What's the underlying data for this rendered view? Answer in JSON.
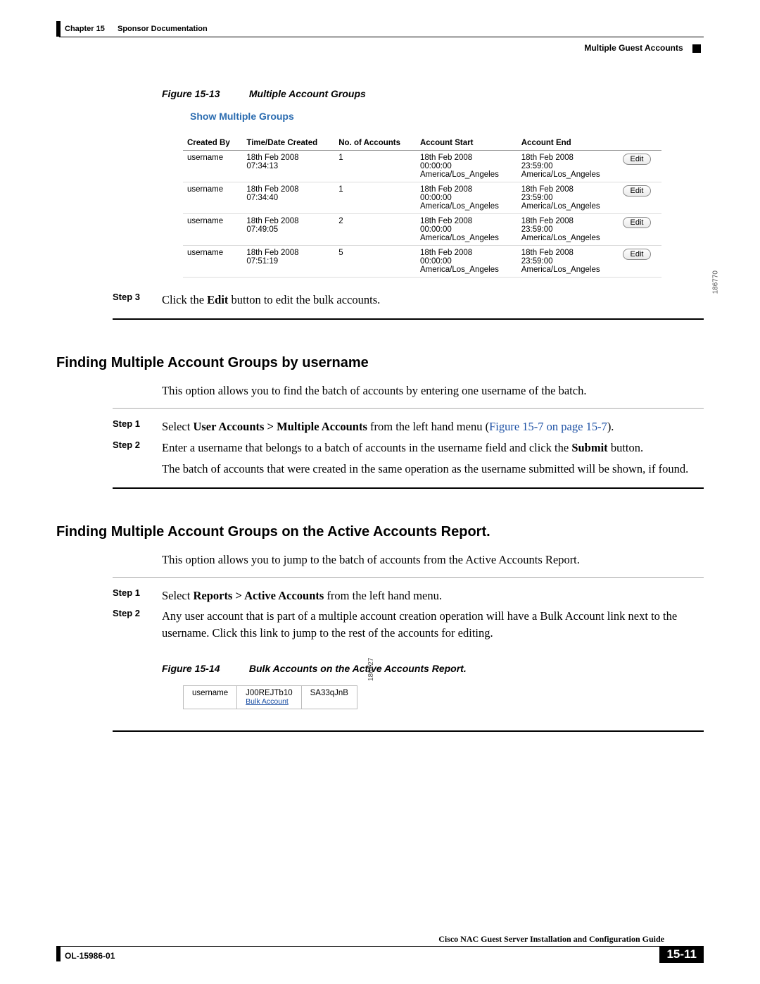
{
  "header": {
    "chapter": "Chapter 15",
    "title": "Sponsor Documentation",
    "section": "Multiple Guest Accounts"
  },
  "figure13": {
    "label": "Figure 15-13",
    "title": "Multiple Account Groups",
    "show_link": "Show Multiple Groups",
    "side_id": "186770",
    "columns": [
      "Created By",
      "Time/Date Created",
      "No. of Accounts",
      "Account Start",
      "Account End",
      ""
    ],
    "rows": [
      {
        "created_by": "username",
        "time": "18th Feb 2008\n07:34:13",
        "num": "1",
        "start": "18th Feb 2008\n00:00:00\nAmerica/Los_Angeles",
        "end": "18th Feb 2008\n23:59:00\nAmerica/Los_Angeles",
        "btn": "Edit"
      },
      {
        "created_by": "username",
        "time": "18th Feb 2008\n07:34:40",
        "num": "1",
        "start": "18th Feb 2008\n00:00:00\nAmerica/Los_Angeles",
        "end": "18th Feb 2008\n23:59:00\nAmerica/Los_Angeles",
        "btn": "Edit"
      },
      {
        "created_by": "username",
        "time": "18th Feb 2008\n07:49:05",
        "num": "2",
        "start": "18th Feb 2008\n00:00:00\nAmerica/Los_Angeles",
        "end": "18th Feb 2008\n23:59:00\nAmerica/Los_Angeles",
        "btn": "Edit"
      },
      {
        "created_by": "username",
        "time": "18th Feb 2008\n07:51:19",
        "num": "5",
        "start": "18th Feb 2008\n00:00:00\nAmerica/Los_Angeles",
        "end": "18th Feb 2008\n23:59:00\nAmerica/Los_Angeles",
        "btn": "Edit"
      }
    ]
  },
  "step3": {
    "label": "Step 3",
    "before": "Click the ",
    "bold": "Edit",
    "after": " button to edit the bulk accounts."
  },
  "section1": {
    "heading": "Finding Multiple Account Groups by username",
    "intro": "This option allows you to find the batch of accounts by entering one username of the batch.",
    "step1": {
      "label": "Step 1",
      "t1": "Select ",
      "b1": "User Accounts > Multiple Accounts",
      "t2": " from the left hand menu (",
      "link": "Figure 15-7 on page 15-7",
      "t3": ")."
    },
    "step2": {
      "label": "Step 2",
      "t1": "Enter a username that belongs to a batch of accounts in the username field and click the ",
      "b1": "Submit",
      "t2": " button."
    },
    "note": "The batch of accounts that were created in the same operation as the username submitted will be shown, if found."
  },
  "section2": {
    "heading": "Finding Multiple Account Groups on the Active Accounts Report.",
    "intro": "This option allows you to jump to the batch of accounts from the Active Accounts Report.",
    "step1": {
      "label": "Step 1",
      "t1": "Select ",
      "b1": "Reports > Active Accounts",
      "t2": " from the left hand menu."
    },
    "step2": {
      "label": "Step 2",
      "text": "Any user account that is part of a multiple account creation operation will have a Bulk Account link next to the username. Click this link to jump to the rest of the accounts for editing."
    }
  },
  "figure14": {
    "label": "Figure 15-14",
    "title": "Bulk Accounts on the Active Accounts Report.",
    "side_id": "186727",
    "row": {
      "c1": "username",
      "c2": "J00REJTb10",
      "link": "Bulk Account",
      "c3": "SA33qJnB"
    }
  },
  "footer": {
    "doc_title": "Cisco NAC Guest Server Installation and Configuration Guide",
    "doc_id": "OL-15986-01",
    "page": "15-11"
  }
}
